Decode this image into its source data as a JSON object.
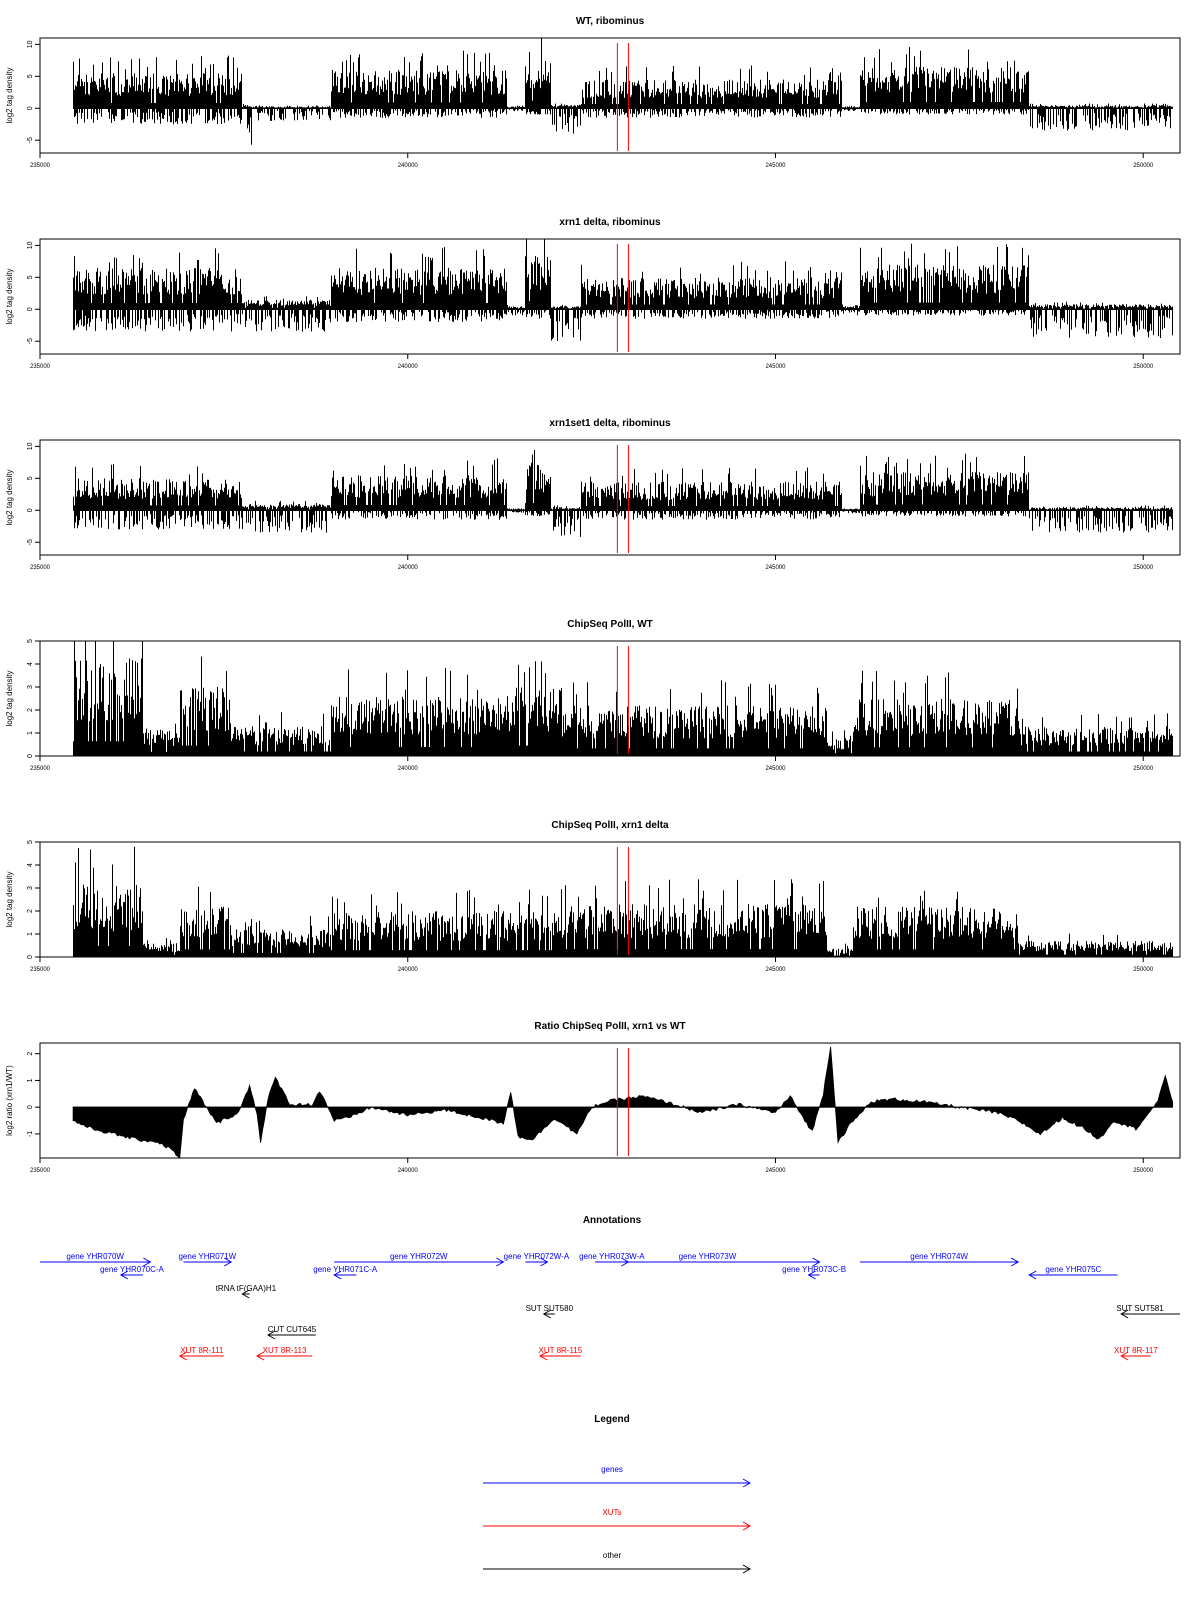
{
  "chart_data": [
    {
      "type": "bar",
      "title": "WT, ribominus",
      "ylabel": "log2 tag density",
      "xlim": [
        235000,
        250500
      ],
      "ylim": [
        -7,
        11
      ],
      "yticks": [
        -5,
        0,
        5,
        10
      ],
      "xticks": [
        235000,
        240000,
        245000,
        250000
      ],
      "vlines": [
        242850,
        243000
      ],
      "profile": [
        {
          "x0": 235450,
          "x1": 237750,
          "lo": -2.5,
          "hi": 5.5
        },
        {
          "x0": 237750,
          "x1": 237950,
          "lo": -6.5,
          "hi": 0.5
        },
        {
          "x0": 237950,
          "x1": 238950,
          "lo": -2.0,
          "hi": 0.3
        },
        {
          "x0": 238950,
          "x1": 241350,
          "lo": -1.5,
          "hi": 6.0
        },
        {
          "x0": 241350,
          "x1": 241600,
          "lo": -0.5,
          "hi": 0.3
        },
        {
          "x0": 241600,
          "x1": 241950,
          "lo": -1.0,
          "hi": 8.0
        },
        {
          "x0": 241950,
          "x1": 242350,
          "lo": -4.0,
          "hi": 0.5
        },
        {
          "x0": 242350,
          "x1": 245900,
          "lo": -1.5,
          "hi": 4.5
        },
        {
          "x0": 245900,
          "x1": 246150,
          "lo": -0.5,
          "hi": 0.3
        },
        {
          "x0": 246150,
          "x1": 248450,
          "lo": -1.0,
          "hi": 6.5
        },
        {
          "x0": 248450,
          "x1": 250400,
          "lo": -3.5,
          "hi": 0.5
        }
      ]
    },
    {
      "type": "bar",
      "title": "xrn1 delta, ribominus",
      "ylabel": "log2 tag density",
      "xlim": [
        235000,
        250500
      ],
      "ylim": [
        -7,
        11
      ],
      "yticks": [
        -5,
        0,
        5,
        10
      ],
      "xticks": [
        235000,
        240000,
        245000,
        250000
      ],
      "vlines": [
        242850,
        243000
      ],
      "profile": [
        {
          "x0": 235450,
          "x1": 237750,
          "lo": -3.5,
          "hi": 6.5
        },
        {
          "x0": 237750,
          "x1": 238950,
          "lo": -3.5,
          "hi": 1.5
        },
        {
          "x0": 238950,
          "x1": 241350,
          "lo": -2.0,
          "hi": 6.5
        },
        {
          "x0": 241350,
          "x1": 241600,
          "lo": -1.0,
          "hi": 0.5
        },
        {
          "x0": 241600,
          "x1": 241950,
          "lo": -1.5,
          "hi": 8.5
        },
        {
          "x0": 241950,
          "x1": 242350,
          "lo": -5.0,
          "hi": 0.5
        },
        {
          "x0": 242350,
          "x1": 245900,
          "lo": -1.5,
          "hi": 5.0
        },
        {
          "x0": 245900,
          "x1": 246150,
          "lo": -1.0,
          "hi": 0.5
        },
        {
          "x0": 246150,
          "x1": 248450,
          "lo": -1.0,
          "hi": 7.0
        },
        {
          "x0": 248450,
          "x1": 250400,
          "lo": -4.5,
          "hi": 0.8
        }
      ]
    },
    {
      "type": "bar",
      "title": "xrn1set1 delta, ribominus",
      "ylabel": "log2 tag density",
      "xlim": [
        235000,
        250500
      ],
      "ylim": [
        -7,
        11
      ],
      "yticks": [
        -5,
        0,
        5,
        10
      ],
      "xticks": [
        235000,
        240000,
        245000,
        250000
      ],
      "vlines": [
        242850,
        243000
      ],
      "profile": [
        {
          "x0": 235450,
          "x1": 237750,
          "lo": -3.0,
          "hi": 5.0
        },
        {
          "x0": 237750,
          "x1": 238950,
          "lo": -3.5,
          "hi": 1.0
        },
        {
          "x0": 238950,
          "x1": 241350,
          "lo": -1.5,
          "hi": 5.5
        },
        {
          "x0": 241350,
          "x1": 241600,
          "lo": -0.5,
          "hi": 0.3
        },
        {
          "x0": 241600,
          "x1": 241950,
          "lo": -1.0,
          "hi": 7.5
        },
        {
          "x0": 241950,
          "x1": 242350,
          "lo": -4.5,
          "hi": 0.5
        },
        {
          "x0": 242350,
          "x1": 245900,
          "lo": -1.5,
          "hi": 4.5
        },
        {
          "x0": 245900,
          "x1": 246150,
          "lo": -0.5,
          "hi": 0.3
        },
        {
          "x0": 246150,
          "x1": 248450,
          "lo": -1.0,
          "hi": 6.0
        },
        {
          "x0": 248450,
          "x1": 250400,
          "lo": -3.5,
          "hi": 0.5
        }
      ]
    },
    {
      "type": "bar",
      "title": "ChipSeq PolII, WT",
      "ylabel": "log2 tag density",
      "xlim": [
        235000,
        250500
      ],
      "ylim": [
        0,
        5
      ],
      "yticks": [
        0,
        1,
        2,
        3,
        4,
        5
      ],
      "xticks": [
        235000,
        240000,
        245000,
        250000
      ],
      "vlines": [
        242850,
        243000
      ],
      "profile": [
        {
          "x0": 235450,
          "x1": 236400,
          "lo": 0,
          "hi": 4.3
        },
        {
          "x0": 236400,
          "x1": 236900,
          "lo": 0,
          "hi": 1.2
        },
        {
          "x0": 236900,
          "x1": 237600,
          "lo": 0,
          "hi": 3.0
        },
        {
          "x0": 237600,
          "x1": 238950,
          "lo": 0,
          "hi": 1.3
        },
        {
          "x0": 238950,
          "x1": 241450,
          "lo": 0,
          "hi": 2.6
        },
        {
          "x0": 241450,
          "x1": 242100,
          "lo": 0,
          "hi": 3.0
        },
        {
          "x0": 242100,
          "x1": 245700,
          "lo": 0,
          "hi": 2.2
        },
        {
          "x0": 245700,
          "x1": 246050,
          "lo": 0,
          "hi": 0.8
        },
        {
          "x0": 246050,
          "x1": 248300,
          "lo": 0,
          "hi": 2.5
        },
        {
          "x0": 248300,
          "x1": 250400,
          "lo": 0,
          "hi": 1.3
        }
      ]
    },
    {
      "type": "bar",
      "title": "ChipSeq PolII, xrn1 delta",
      "ylabel": "log2 tag density",
      "xlim": [
        235000,
        250500
      ],
      "ylim": [
        0,
        5
      ],
      "yticks": [
        0,
        1,
        2,
        3,
        4,
        5
      ],
      "xticks": [
        235000,
        240000,
        245000,
        250000
      ],
      "vlines": [
        242850,
        243000
      ],
      "profile": [
        {
          "x0": 235450,
          "x1": 236400,
          "lo": 0,
          "hi": 3.2
        },
        {
          "x0": 236400,
          "x1": 236900,
          "lo": 0,
          "hi": 0.6
        },
        {
          "x0": 236900,
          "x1": 237600,
          "lo": 0,
          "hi": 2.2
        },
        {
          "x0": 237600,
          "x1": 238950,
          "lo": 0,
          "hi": 1.2
        },
        {
          "x0": 238950,
          "x1": 241450,
          "lo": 0,
          "hi": 2.0
        },
        {
          "x0": 241450,
          "x1": 242100,
          "lo": 0,
          "hi": 2.0
        },
        {
          "x0": 242100,
          "x1": 245700,
          "lo": 0,
          "hi": 2.3
        },
        {
          "x0": 245700,
          "x1": 246050,
          "lo": 0,
          "hi": 0.4
        },
        {
          "x0": 246050,
          "x1": 248300,
          "lo": 0,
          "hi": 2.2
        },
        {
          "x0": 248300,
          "x1": 250400,
          "lo": 0,
          "hi": 0.7
        }
      ]
    },
    {
      "type": "area",
      "title": "Ratio ChipSeq PolII, xrn1 vs WT",
      "ylabel": "log2 ratio (xrn1/WT)",
      "xlim": [
        235000,
        250500
      ],
      "ylim": [
        -1.9,
        2.4
      ],
      "yticks": [
        -1,
        0,
        1,
        2
      ],
      "xticks": [
        235000,
        240000,
        245000,
        250000
      ],
      "vlines": [
        242850,
        243000
      ],
      "x": [
        235450,
        235700,
        236000,
        236300,
        236600,
        236800,
        236900,
        236950,
        237100,
        237400,
        237700,
        237850,
        237950,
        238000,
        238100,
        238200,
        238400,
        238700,
        238800,
        238900,
        239000,
        239200,
        239500,
        240000,
        240500,
        241000,
        241300,
        241400,
        241500,
        241700,
        242000,
        242300,
        242500,
        242700,
        242900,
        243200,
        243500,
        244000,
        244500,
        245000,
        245200,
        245400,
        245500,
        245650,
        245750,
        245850,
        246000,
        246300,
        246600,
        247000,
        247500,
        248000,
        248300,
        248600,
        248900,
        249200,
        249400,
        249600,
        249900,
        250200,
        250300,
        250400
      ],
      "y": [
        -0.5,
        -0.8,
        -1.0,
        -1.2,
        -1.3,
        -1.6,
        -1.9,
        -0.5,
        0.7,
        -0.6,
        -0.2,
        0.8,
        -0.2,
        -1.3,
        0.3,
        1.1,
        0.1,
        0.1,
        0.6,
        0.1,
        -0.5,
        -0.4,
        0.0,
        -0.3,
        -0.1,
        -0.4,
        -0.6,
        0.6,
        -1.1,
        -1.2,
        -0.4,
        -1.0,
        0.0,
        0.2,
        0.3,
        0.4,
        0.2,
        -0.2,
        0.1,
        -0.2,
        0.4,
        -0.5,
        -0.9,
        0.5,
        2.3,
        -1.3,
        -0.7,
        0.2,
        0.3,
        0.2,
        0.0,
        -0.2,
        -0.5,
        -1.0,
        -0.4,
        -0.8,
        -1.2,
        -0.5,
        -0.8,
        0.2,
        1.2,
        0.2
      ]
    }
  ],
  "annotations": {
    "title": "Annotations",
    "xlim": [
      235000,
      250500
    ],
    "features": [
      {
        "label": "gene YHR070W",
        "x0": 235000,
        "x1": 236500,
        "dir": "right",
        "kind": "genes",
        "row": 0
      },
      {
        "label": "gene YHR070C-A",
        "x0": 236100,
        "x1": 236400,
        "dir": "left",
        "kind": "genes",
        "row": 1
      },
      {
        "label": "gene YHR071W",
        "x0": 236950,
        "x1": 237600,
        "dir": "right",
        "kind": "genes",
        "row": 0
      },
      {
        "label": "tRNA tF(GAA)H1",
        "x0": 237750,
        "x1": 237850,
        "dir": "left",
        "kind": "other",
        "row": 2
      },
      {
        "label": "gene YHR071C-A",
        "x0": 239000,
        "x1": 239300,
        "dir": "left",
        "kind": "genes",
        "row": 1
      },
      {
        "label": "gene YHR072W",
        "x0": 239000,
        "x1": 241300,
        "dir": "right",
        "kind": "genes",
        "row": 0
      },
      {
        "label": "gene YHR072W-A",
        "x0": 241600,
        "x1": 241900,
        "dir": "right",
        "kind": "genes",
        "row": 0
      },
      {
        "label": "SUT SUT580",
        "x0": 241850,
        "x1": 242000,
        "dir": "left",
        "kind": "other",
        "row": 3
      },
      {
        "label": "gene YHR073W-A",
        "x0": 242550,
        "x1": 243000,
        "dir": "right",
        "kind": "genes",
        "row": 0
      },
      {
        "label": "gene YHR073W",
        "x0": 242550,
        "x1": 245600,
        "dir": "right",
        "kind": "genes",
        "row": 0
      },
      {
        "label": "gene YHR073C-B",
        "x0": 245450,
        "x1": 245600,
        "dir": "left",
        "kind": "genes",
        "row": 1
      },
      {
        "label": "gene YHR074W",
        "x0": 246150,
        "x1": 248300,
        "dir": "right",
        "kind": "genes",
        "row": 0
      },
      {
        "label": "gene YHR075C",
        "x0": 248450,
        "x1": 249650,
        "dir": "left",
        "kind": "genes",
        "row": 1
      },
      {
        "label": "SUT SUT581",
        "x0": 249700,
        "x1": 250500,
        "dir": "left",
        "kind": "other",
        "row": 3
      },
      {
        "label": "CUT CUT645",
        "x0": 238100,
        "x1": 238750,
        "dir": "left",
        "kind": "other",
        "row": 4
      },
      {
        "label": "XUT 8R-111",
        "x0": 236900,
        "x1": 237500,
        "dir": "left",
        "kind": "xuts",
        "row": 5
      },
      {
        "label": "XUT 8R-113",
        "x0": 237950,
        "x1": 238700,
        "dir": "left",
        "kind": "xuts",
        "row": 5
      },
      {
        "label": "XUT 8R-115",
        "x0": 241800,
        "x1": 242350,
        "dir": "left",
        "kind": "xuts",
        "row": 5
      },
      {
        "label": "XUT 8R-117",
        "x0": 249700,
        "x1": 250100,
        "dir": "left",
        "kind": "xuts",
        "row": 5
      }
    ]
  },
  "legend": {
    "title": "Legend",
    "items": [
      {
        "key": "genes",
        "label": "genes"
      },
      {
        "key": "xuts",
        "label": "XUTs"
      },
      {
        "key": "other",
        "label": "other"
      }
    ]
  },
  "colors": {
    "genes": "#0000ff",
    "xuts": "#ff0000",
    "other": "#000000",
    "marker": "#ff0000",
    "bars": "#000000"
  }
}
